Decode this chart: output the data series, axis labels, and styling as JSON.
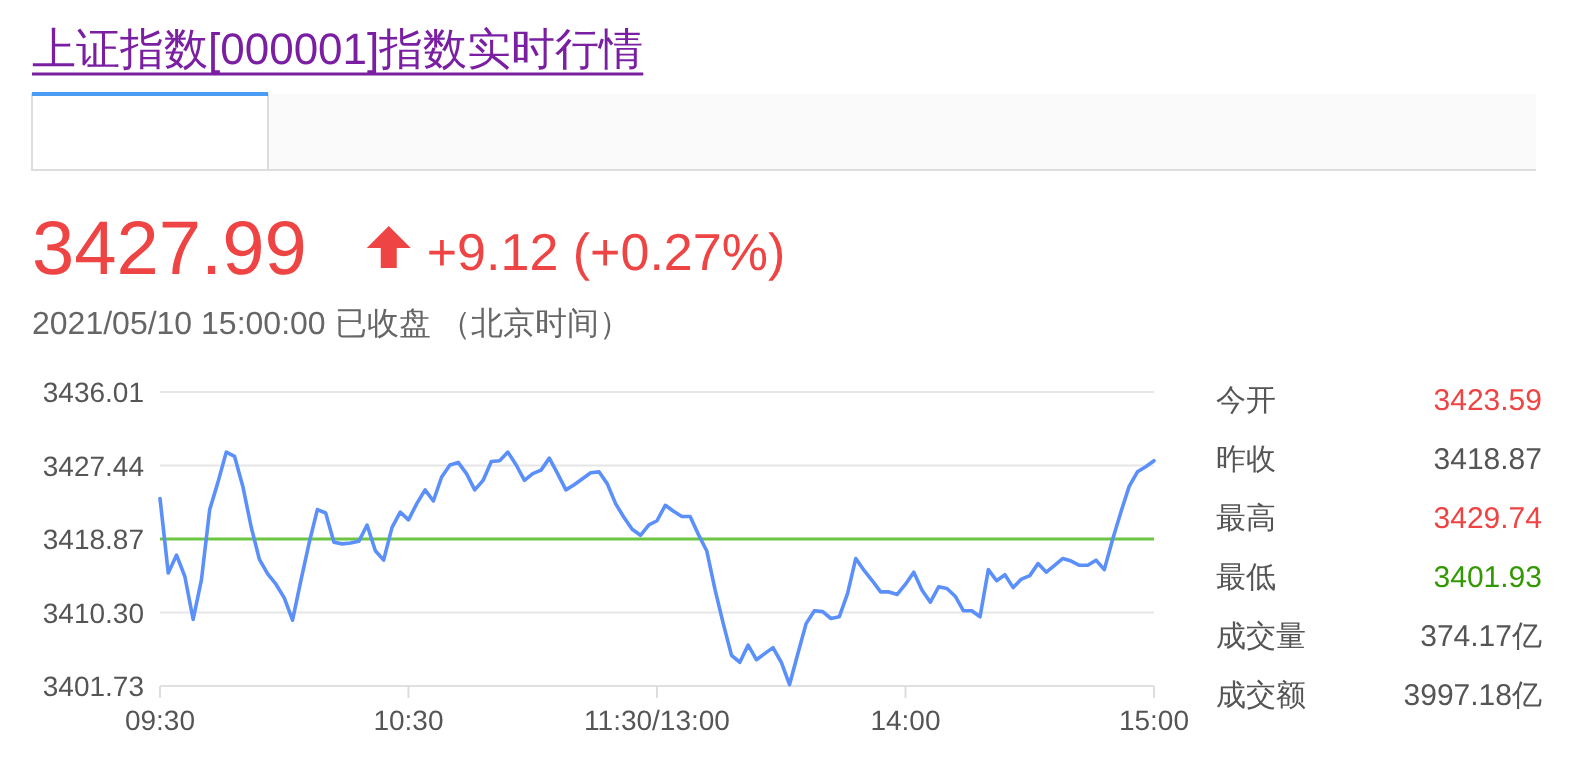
{
  "chart_data": [
    {
      "type": "line",
      "title": "上证指数[000001]指数实时行情",
      "subtitle": "2021/05/10 15:00:00  已收盘 （北京时间）",
      "annotations": [
        "3427.99",
        "+9.12 (+0.27%)"
      ],
      "categories": [
        "09:30",
        null,
        null,
        null,
        null,
        null,
        null,
        null,
        null,
        null,
        null,
        null,
        null,
        null,
        null,
        null,
        null,
        null,
        null,
        null,
        null,
        null,
        null,
        null,
        null,
        null,
        null,
        null,
        null,
        null,
        "10:30",
        null,
        null,
        null,
        null,
        null,
        null,
        null,
        null,
        null,
        null,
        null,
        null,
        null,
        null,
        null,
        null,
        null,
        null,
        null,
        null,
        null,
        null,
        null,
        null,
        null,
        null,
        null,
        null,
        null,
        "11:30/13:00",
        null,
        null,
        null,
        null,
        null,
        null,
        null,
        null,
        null,
        null,
        null,
        null,
        null,
        null,
        null,
        null,
        null,
        null,
        null,
        null,
        null,
        null,
        null,
        null,
        null,
        null,
        null,
        null,
        null,
        "14:00",
        null,
        null,
        null,
        null,
        null,
        null,
        null,
        null,
        null,
        null,
        null,
        null,
        null,
        null,
        null,
        null,
        null,
        null,
        null,
        null,
        null,
        null,
        null,
        null,
        null,
        null,
        null,
        null,
        null,
        "15:00"
      ],
      "ylim": [
        3401.73,
        3436.01
      ],
      "yticks": [
        3401.73,
        {
          "value": 3410.3,
          "label": "3410.30"
        },
        3418.87,
        3427.44,
        3436.01
      ],
      "grid": "y",
      "ref_lines": [
        {
          "axis": "y",
          "value": 3418.87,
          "color": "#6cc644"
        }
      ],
      "series": [
        {
          "color": "#5b8ff9",
          "values": [
            3423.6,
            3414.9,
            3417.0,
            3414.5,
            3409.5,
            3414.1,
            3422.3,
            3425.5,
            3429.0,
            3428.5,
            3425.0,
            3420.3,
            3416.5,
            3414.8,
            3413.6,
            3412.0,
            3409.4,
            3414.0,
            3418.4,
            3422.3,
            3421.9,
            3418.5,
            3418.3,
            3418.4,
            3418.6,
            3420.5,
            3417.5,
            3416.4,
            3420.2,
            3422.0,
            3421.1,
            3423.0,
            3424.6,
            3423.3,
            3426.1,
            3427.5,
            3427.8,
            3426.5,
            3424.6,
            3425.7,
            3427.9,
            3428.0,
            3429.0,
            3427.5,
            3425.7,
            3426.5,
            3426.9,
            3428.3,
            3426.5,
            3424.6,
            3425.2,
            3425.9,
            3426.6,
            3426.7,
            3425.3,
            3423.0,
            3421.4,
            3420.0,
            3419.3,
            3420.5,
            3421.0,
            3422.8,
            3422.1,
            3421.5,
            3421.5,
            3419.4,
            3417.5,
            3413.0,
            3409.0,
            3405.3,
            3404.5,
            3406.5,
            3404.8,
            3405.5,
            3406.2,
            3404.5,
            3401.9,
            3405.5,
            3409.0,
            3410.5,
            3410.4,
            3409.6,
            3409.8,
            3412.5,
            3416.6,
            3415.2,
            3414.0,
            3412.7,
            3412.7,
            3412.4,
            3413.6,
            3415.0,
            3412.9,
            3411.5,
            3413.3,
            3413.1,
            3412.2,
            3410.5,
            3410.5,
            3409.8,
            3415.3,
            3414.0,
            3414.7,
            3413.2,
            3414.2,
            3414.6,
            3416.0,
            3415.0,
            3415.8,
            3416.6,
            3416.3,
            3415.8,
            3415.8,
            3416.4,
            3415.3,
            3418.8,
            3422.0,
            3425.0,
            3426.7,
            3427.3,
            3428.0
          ]
        }
      ]
    },
    {
      "type": "other",
      "annotations": [
        "今开",
        "3423.59",
        "昨收",
        "3418.87",
        "最高",
        "3429.74",
        "最低",
        "3401.93",
        "成交量",
        "374.17亿",
        "成交额",
        "3997.18亿"
      ],
      "colors": [
        "#ee4444",
        "#555555",
        "#ee4444",
        "#339900",
        "#555555",
        "#555555"
      ]
    }
  ]
}
